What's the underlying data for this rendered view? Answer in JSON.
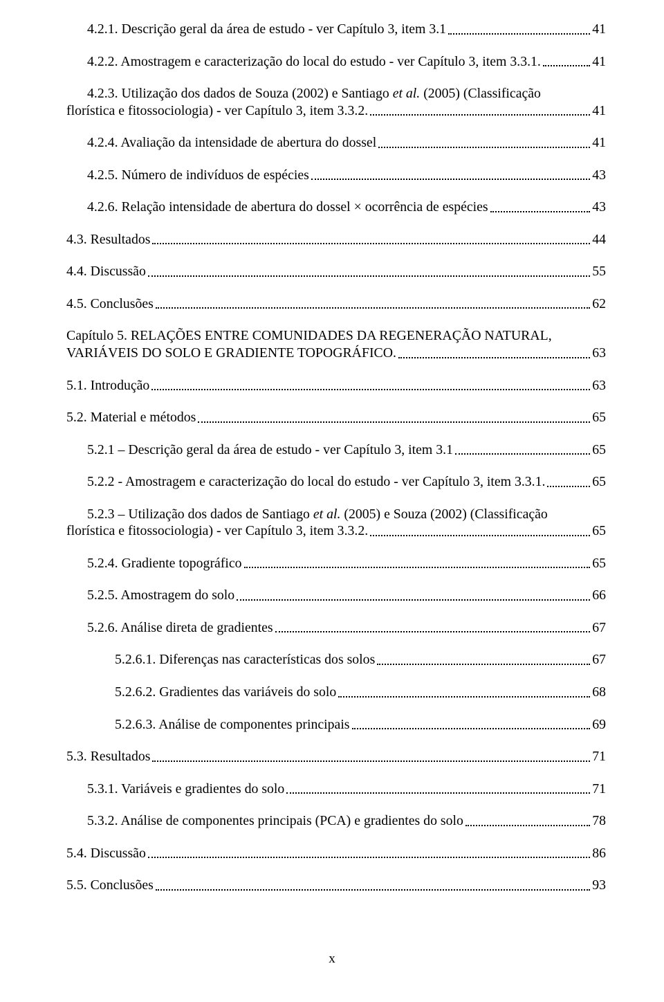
{
  "footer": "x",
  "entries": [
    {
      "indent": 1,
      "text": "4.2.1. Descrição geral da área de estudo - ver Capítulo 3, item 3.1",
      "page": "41"
    },
    {
      "indent": 1,
      "text": "4.2.2. Amostragem e caracterização do local do estudo - ver Capítulo 3, item 3.3.1.",
      "page": "41"
    },
    {
      "indent": 1,
      "multi": true,
      "line1": "4.2.3. Utilização dos dados de Souza (2002) e Santiago <span class=\"italic\">et al.</span> (2005) (Classificação",
      "line2": "florística e fitossociologia) - ver Capítulo 3, item 3.3.2.",
      "page": "41",
      "noindent2": true
    },
    {
      "indent": 1,
      "text": "4.2.4. Avaliação da intensidade de abertura do dossel",
      "page": "41"
    },
    {
      "indent": 1,
      "text": "4.2.5. Número de indivíduos de espécies",
      "page": "43"
    },
    {
      "indent": 1,
      "text": "4.2.6. Relação intensidade de abertura do dossel × ocorrência de espécies",
      "page": "43"
    },
    {
      "indent": 0,
      "text": "4.3. Resultados",
      "page": "44"
    },
    {
      "indent": 0,
      "text": "4.4. Discussão",
      "page": "55"
    },
    {
      "indent": 0,
      "text": "4.5. Conclusões",
      "page": "62"
    },
    {
      "indent": 0,
      "multi": true,
      "line1": "Capítulo 5. RELAÇÕES ENTRE COMUNIDADES DA REGENERAÇÃO NATURAL,",
      "line2": "VARIÁVEIS DO SOLO E GRADIENTE TOPOGRÁFICO.",
      "page": "63"
    },
    {
      "indent": 0,
      "text": "5.1. Introdução",
      "page": "63"
    },
    {
      "indent": 0,
      "text": "5.2. Material e métodos",
      "page": "65"
    },
    {
      "indent": 1,
      "text": "5.2.1 – Descrição geral da área de estudo - ver Capítulo 3, item 3.1",
      "page": "65"
    },
    {
      "indent": 1,
      "text": "5.2.2 - Amostragem e caracterização do local do estudo - ver Capítulo 3, item 3.3.1.",
      "page": "65"
    },
    {
      "indent": 1,
      "multi": true,
      "line1": "5.2.3 – Utilização dos dados de Santiago <span class=\"italic\">et al.</span> (2005) e Souza (2002) (Classificação",
      "line2": "florística e fitossociologia) - ver Capítulo 3, item 3.3.2.",
      "page": "65",
      "noindent2": true
    },
    {
      "indent": 1,
      "text": "5.2.4. Gradiente topográfico",
      "page": "65"
    },
    {
      "indent": 1,
      "text": "5.2.5. Amostragem do solo",
      "page": "66"
    },
    {
      "indent": 1,
      "text": "5.2.6. Análise direta de gradientes",
      "page": "67"
    },
    {
      "indent": 2,
      "text": "5.2.6.1. Diferenças nas características dos solos",
      "page": "67"
    },
    {
      "indent": 2,
      "text": "5.2.6.2. Gradientes das variáveis do solo",
      "page": "68"
    },
    {
      "indent": 2,
      "text": "5.2.6.3. Análise de componentes principais",
      "page": "69"
    },
    {
      "indent": 0,
      "text": "5.3. Resultados",
      "page": "71"
    },
    {
      "indent": 1,
      "text": "5.3.1. Variáveis e gradientes do solo",
      "page": "71"
    },
    {
      "indent": 1,
      "text": "5.3.2. Análise de componentes principais (PCA) e gradientes do solo",
      "page": "78"
    },
    {
      "indent": 0,
      "text": "5.4. Discussão",
      "page": "86"
    },
    {
      "indent": 0,
      "text": "5.5. Conclusões",
      "page": "93"
    }
  ]
}
